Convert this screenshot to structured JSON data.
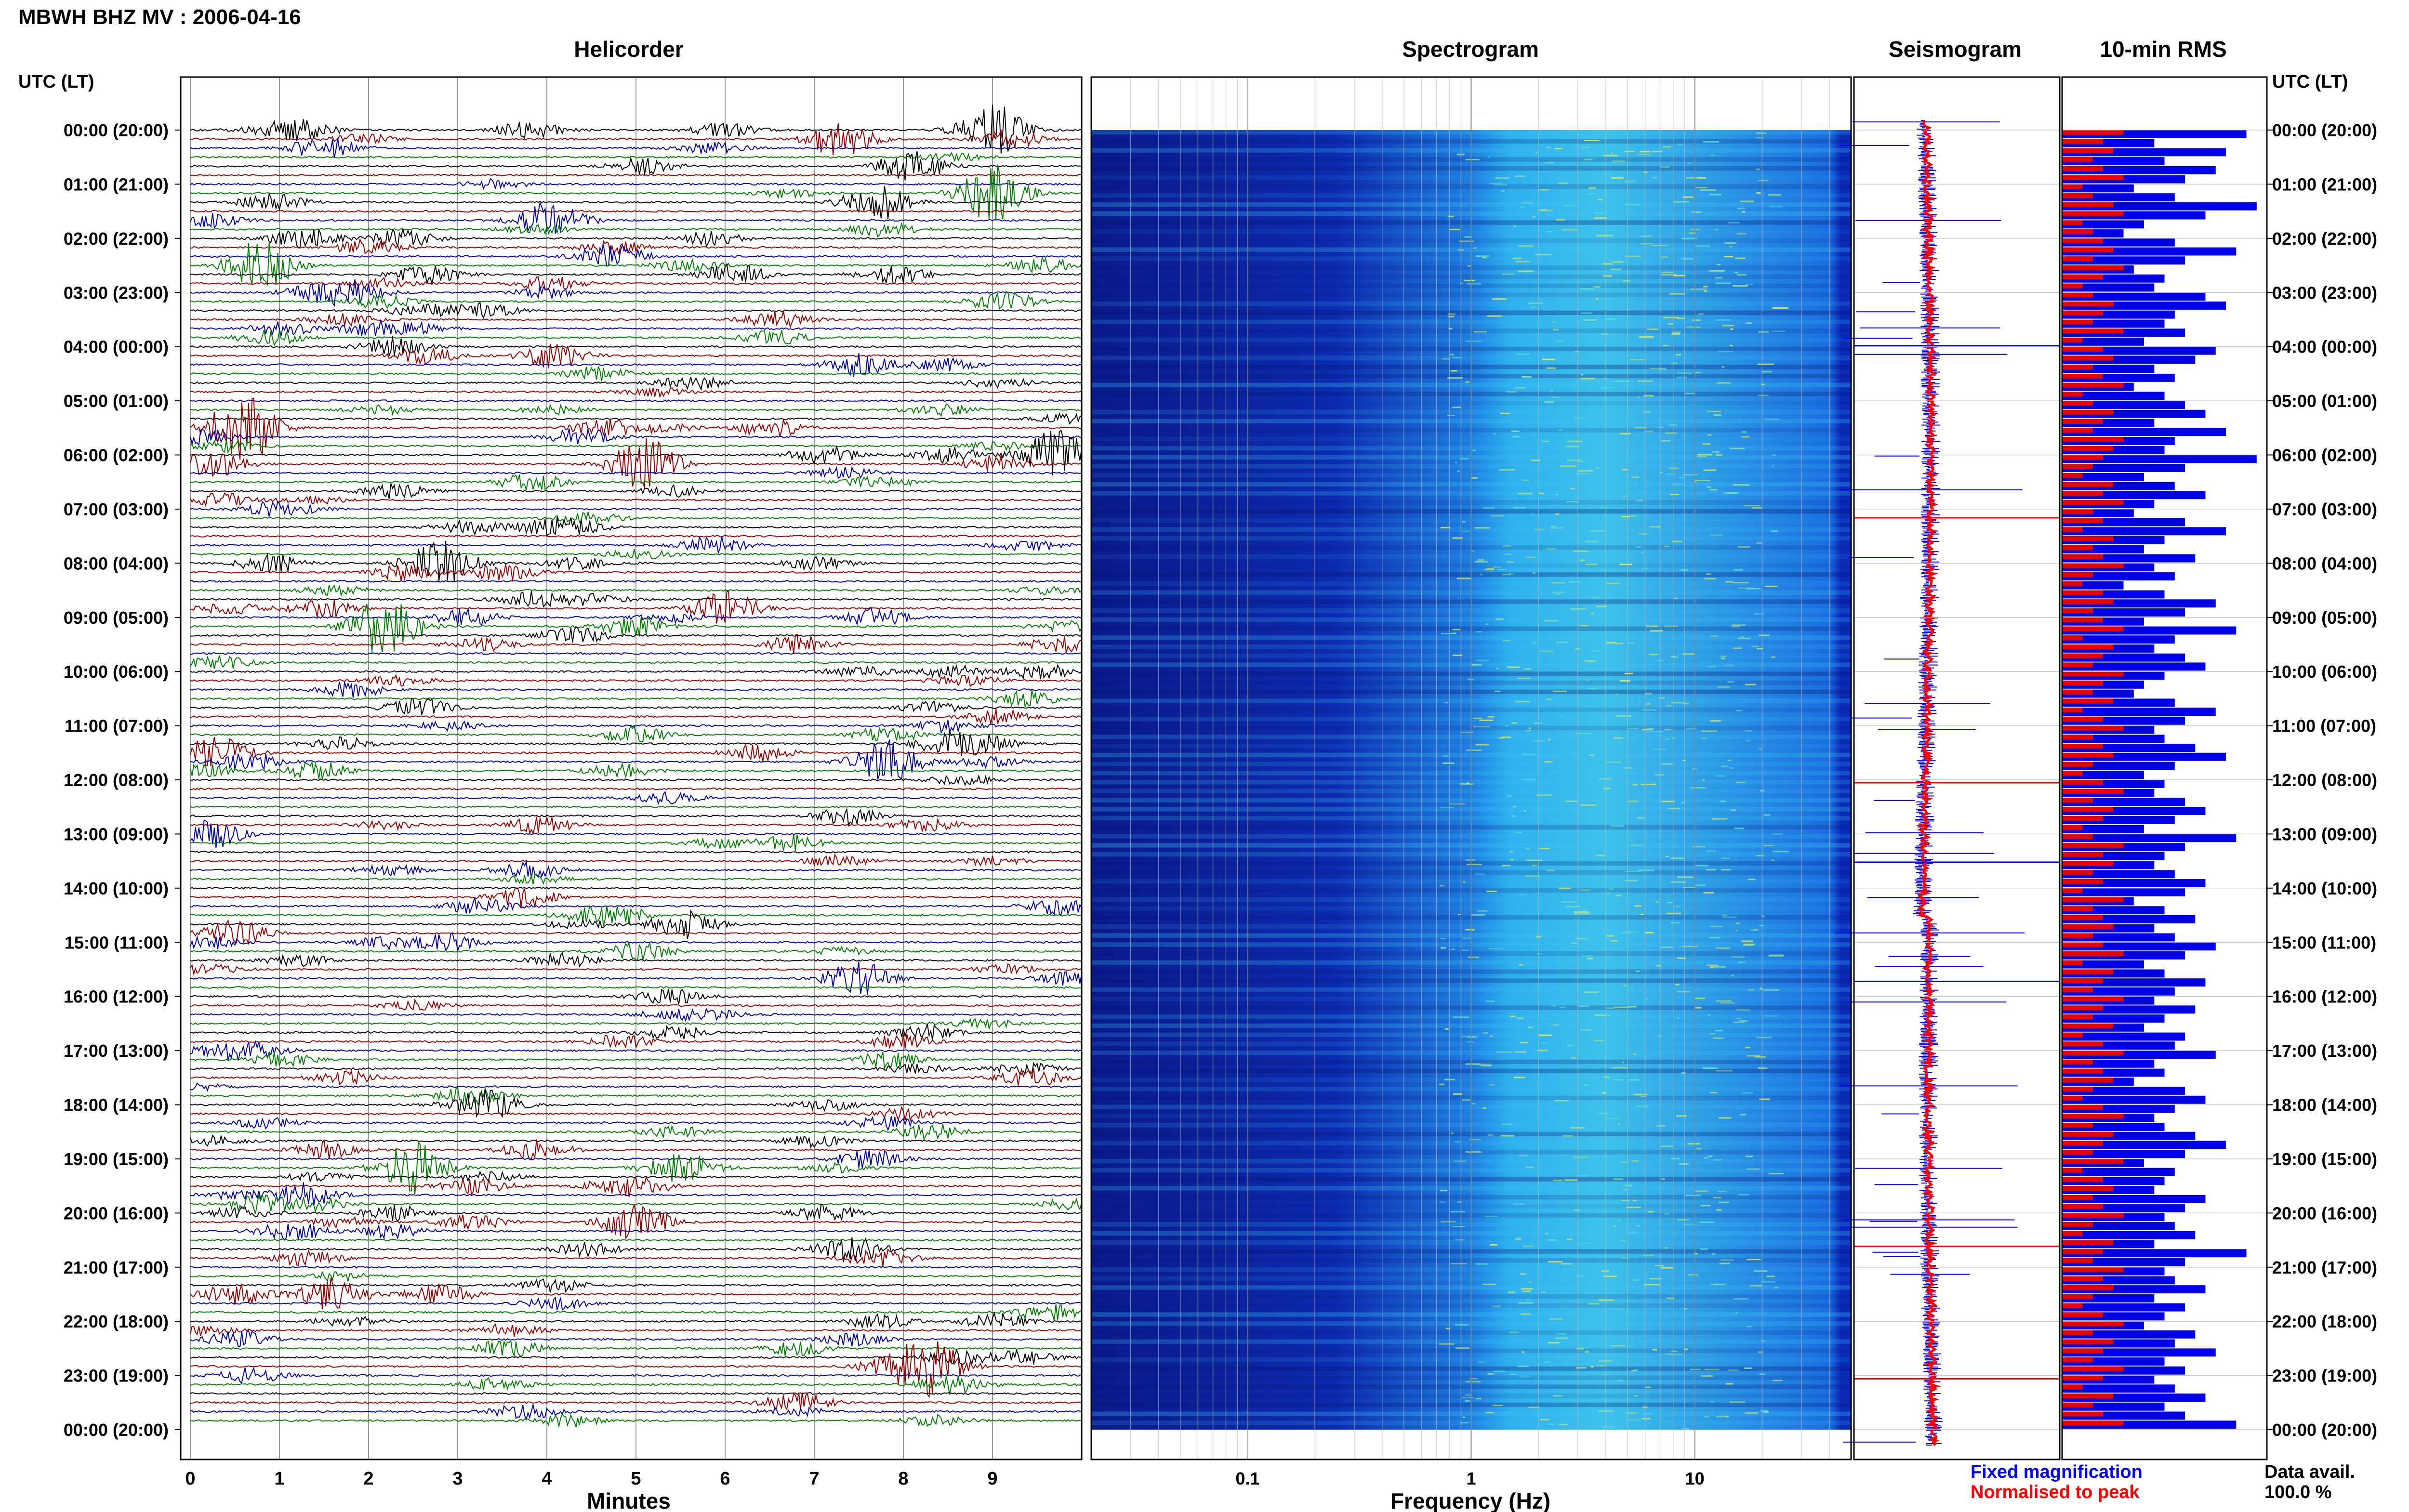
{
  "header": {
    "title": "MBWH BHZ MV : 2006-04-16"
  },
  "left_axis_label": "UTC (LT)",
  "right_axis_label": "UTC (LT)",
  "time_labels": [
    "00:00 (20:00)",
    "01:00 (21:00)",
    "02:00 (22:00)",
    "03:00 (23:00)",
    "04:00 (00:00)",
    "05:00 (01:00)",
    "06:00 (02:00)",
    "07:00 (03:00)",
    "08:00 (04:00)",
    "09:00 (05:00)",
    "10:00 (06:00)",
    "11:00 (07:00)",
    "12:00 (08:00)",
    "13:00 (09:00)",
    "14:00 (10:00)",
    "15:00 (11:00)",
    "16:00 (12:00)",
    "17:00 (13:00)",
    "18:00 (14:00)",
    "19:00 (15:00)",
    "20:00 (16:00)",
    "21:00 (17:00)",
    "22:00 (18:00)",
    "23:00 (19:00)",
    "00:00 (20:00)"
  ],
  "panels": {
    "helicorder": {
      "title": "Helicorder",
      "xlabel": "Minutes",
      "ticks": [
        "0",
        "1",
        "2",
        "3",
        "4",
        "5",
        "6",
        "7",
        "8",
        "9"
      ]
    },
    "spectrogram": {
      "title": "Spectrogram",
      "xlabel": "Frequency (Hz)",
      "ticks": [
        "0.1",
        "1",
        "10"
      ]
    },
    "seismogram": {
      "title": "Seismogram"
    },
    "rms": {
      "title": "10-min RMS"
    }
  },
  "legend": {
    "fixed": "Fixed magnification",
    "normalised": "Normalised to peak",
    "fixed_color": "#0000ff",
    "normalised_color": "#ff0000"
  },
  "data_avail": {
    "label": "Data avail.",
    "value": "100.0 %"
  },
  "colors": {
    "trace_cycle": [
      "#000000",
      "#990000",
      "#0000a8",
      "#008000"
    ],
    "rms_fixed": "#0000e6",
    "rms_norm": "#e60000"
  },
  "chart_data": [
    {
      "type": "line",
      "title": "Helicorder",
      "xlabel": "Minutes",
      "xlim": [
        0,
        10
      ],
      "rows": 144,
      "row_minutes": 10,
      "events": [
        {
          "row": 0,
          "minute": 3.8,
          "amp": 0.6
        },
        {
          "row": 0,
          "minute": 6.0,
          "amp": 0.5
        },
        {
          "row": 0,
          "minute": 9.0,
          "amp": 2.0
        },
        {
          "row": 1,
          "minute": 7.3,
          "amp": 1.3
        },
        {
          "row": 2,
          "minute": 1.5,
          "amp": 0.8
        },
        {
          "row": 4,
          "minute": 8.1,
          "amp": 1.2
        },
        {
          "row": 7,
          "minute": 9.0,
          "amp": 2.0
        },
        {
          "row": 8,
          "minute": 7.7,
          "amp": 1.3
        },
        {
          "row": 10,
          "minute": 4.0,
          "amp": 0.7
        },
        {
          "row": 15,
          "minute": 0.8,
          "amp": 1.8
        },
        {
          "row": 16,
          "minute": 6.1,
          "amp": 0.7
        },
        {
          "row": 18,
          "minute": 1.8,
          "amp": 0.8
        },
        {
          "row": 25,
          "minute": 4.1,
          "amp": 0.9
        },
        {
          "row": 26,
          "minute": 7.5,
          "amp": 0.8
        },
        {
          "row": 33,
          "minute": 0.6,
          "amp": 2.6
        },
        {
          "row": 36,
          "minute": 9.7,
          "amp": 1.8
        },
        {
          "row": 37,
          "minute": 5.1,
          "amp": 1.8
        },
        {
          "row": 48,
          "minute": 2.8,
          "amp": 1.6
        },
        {
          "row": 53,
          "minute": 6.0,
          "amp": 1.2
        },
        {
          "row": 55,
          "minute": 2.2,
          "amp": 2.0
        },
        {
          "row": 69,
          "minute": 0.3,
          "amp": 1.2
        },
        {
          "row": 70,
          "minute": 7.8,
          "amp": 1.0
        },
        {
          "row": 89,
          "minute": 0.5,
          "amp": 0.9
        },
        {
          "row": 94,
          "minute": 7.5,
          "amp": 1.2
        },
        {
          "row": 115,
          "minute": 2.5,
          "amp": 1.8
        },
        {
          "row": 121,
          "minute": 5.0,
          "amp": 1.3
        },
        {
          "row": 124,
          "minute": 7.4,
          "amp": 0.9
        },
        {
          "row": 129,
          "minute": 0.5,
          "amp": 0.7
        },
        {
          "row": 137,
          "minute": 8.3,
          "amp": 2.1
        }
      ]
    },
    {
      "type": "heatmap",
      "title": "Spectrogram",
      "xlabel": "Frequency (Hz)",
      "xscale": "log",
      "xlim": [
        0.02,
        50
      ],
      "ylim_hours": [
        0,
        24
      ],
      "dominant_band_hz": [
        1.5,
        4
      ]
    },
    {
      "type": "line",
      "title": "Seismogram",
      "series": [
        {
          "name": "Fixed magnification"
        },
        {
          "name": "Normalised to peak"
        }
      ]
    },
    {
      "type": "bar",
      "title": "10-min RMS",
      "bins": 144,
      "series": [
        {
          "name": "Fixed magnification",
          "values": [
            0.9,
            0.45,
            0.8,
            0.5,
            0.75,
            0.6,
            0.35,
            0.55,
            0.95,
            0.7,
            0.4,
            0.3,
            0.55,
            0.85,
            0.6,
            0.35,
            0.5,
            0.45,
            0.7,
            0.8,
            0.55,
            0.5,
            0.6,
            0.4,
            0.75,
            0.65,
            0.45,
            0.55,
            0.35,
            0.5,
            0.6,
            0.7,
            0.45,
            0.8,
            0.55,
            0.5,
            0.95,
            0.6,
            0.4,
            0.55,
            0.7,
            0.45,
            0.35,
            0.6,
            0.8,
            0.5,
            0.4,
            0.65,
            0.45,
            0.55,
            0.3,
            0.5,
            0.75,
            0.6,
            0.4,
            0.85,
            0.55,
            0.45,
            0.6,
            0.7,
            0.5,
            0.4,
            0.35,
            0.55,
            0.75,
            0.6,
            0.45,
            0.5,
            0.65,
            0.8,
            0.55,
            0.4,
            0.5,
            0.45,
            0.6,
            0.7,
            0.55,
            0.4,
            0.85,
            0.6,
            0.5,
            0.45,
            0.55,
            0.7,
            0.6,
            0.35,
            0.5,
            0.65,
            0.45,
            0.55,
            0.75,
            0.6,
            0.4,
            0.5,
            0.7,
            0.55,
            0.45,
            0.65,
            0.5,
            0.4,
            0.6,
            0.55,
            0.75,
            0.45,
            0.5,
            0.35,
            0.6,
            0.7,
            0.55,
            0.45,
            0.5,
            0.65,
            0.8,
            0.6,
            0.4,
            0.55,
            0.5,
            0.45,
            0.7,
            0.6,
            0.5,
            0.55,
            0.65,
            0.45,
            0.9,
            0.6,
            0.5,
            0.55,
            0.7,
            0.45,
            0.6,
            0.5,
            0.4,
            0.65,
            0.55,
            0.75,
            0.5,
            0.6,
            0.45,
            0.55,
            0.7,
            0.5,
            0.6,
            0.85
          ]
        },
        {
          "name": "Normalised to peak",
          "values": [
            0.3,
            0.2,
            0.25,
            0.15,
            0.2,
            0.3,
            0.1,
            0.15,
            0.25,
            0.3,
            0.1,
            0.15,
            0.2,
            0.25,
            0.15,
            0.3,
            0.2,
            0.1,
            0.15,
            0.25,
            0.2,
            0.15,
            0.3,
            0.1,
            0.2,
            0.25,
            0.15,
            0.2,
            0.3,
            0.1,
            0.15,
            0.25,
            0.2,
            0.15,
            0.3,
            0.25,
            0.2,
            0.15,
            0.1,
            0.25,
            0.2,
            0.3,
            0.15,
            0.2,
            0.1,
            0.25,
            0.15,
            0.2,
            0.3,
            0.15,
            0.1,
            0.2,
            0.25,
            0.15,
            0.2,
            0.3,
            0.1,
            0.25,
            0.2,
            0.15,
            0.3,
            0.2,
            0.15,
            0.25,
            0.1,
            0.2,
            0.3,
            0.15,
            0.2,
            0.25,
            0.15,
            0.1,
            0.2,
            0.3,
            0.15,
            0.25,
            0.2,
            0.1,
            0.15,
            0.3,
            0.2,
            0.25,
            0.15,
            0.2,
            0.1,
            0.3,
            0.15,
            0.2,
            0.25,
            0.15,
            0.2,
            0.3,
            0.1,
            0.25,
            0.2,
            0.15,
            0.3,
            0.2,
            0.15,
            0.25,
            0.1,
            0.2,
            0.3,
            0.15,
            0.2,
            0.25,
            0.15,
            0.1,
            0.2,
            0.3,
            0.15,
            0.25,
            0.2,
            0.15,
            0.3,
            0.1,
            0.2,
            0.25,
            0.15,
            0.2,
            0.3,
            0.15,
            0.1,
            0.25,
            0.2,
            0.15,
            0.3,
            0.2,
            0.25,
            0.15,
            0.1,
            0.2,
            0.3,
            0.15,
            0.25,
            0.2,
            0.15,
            0.3,
            0.2,
            0.1,
            0.25,
            0.15,
            0.2,
            0.3
          ]
        }
      ]
    }
  ]
}
